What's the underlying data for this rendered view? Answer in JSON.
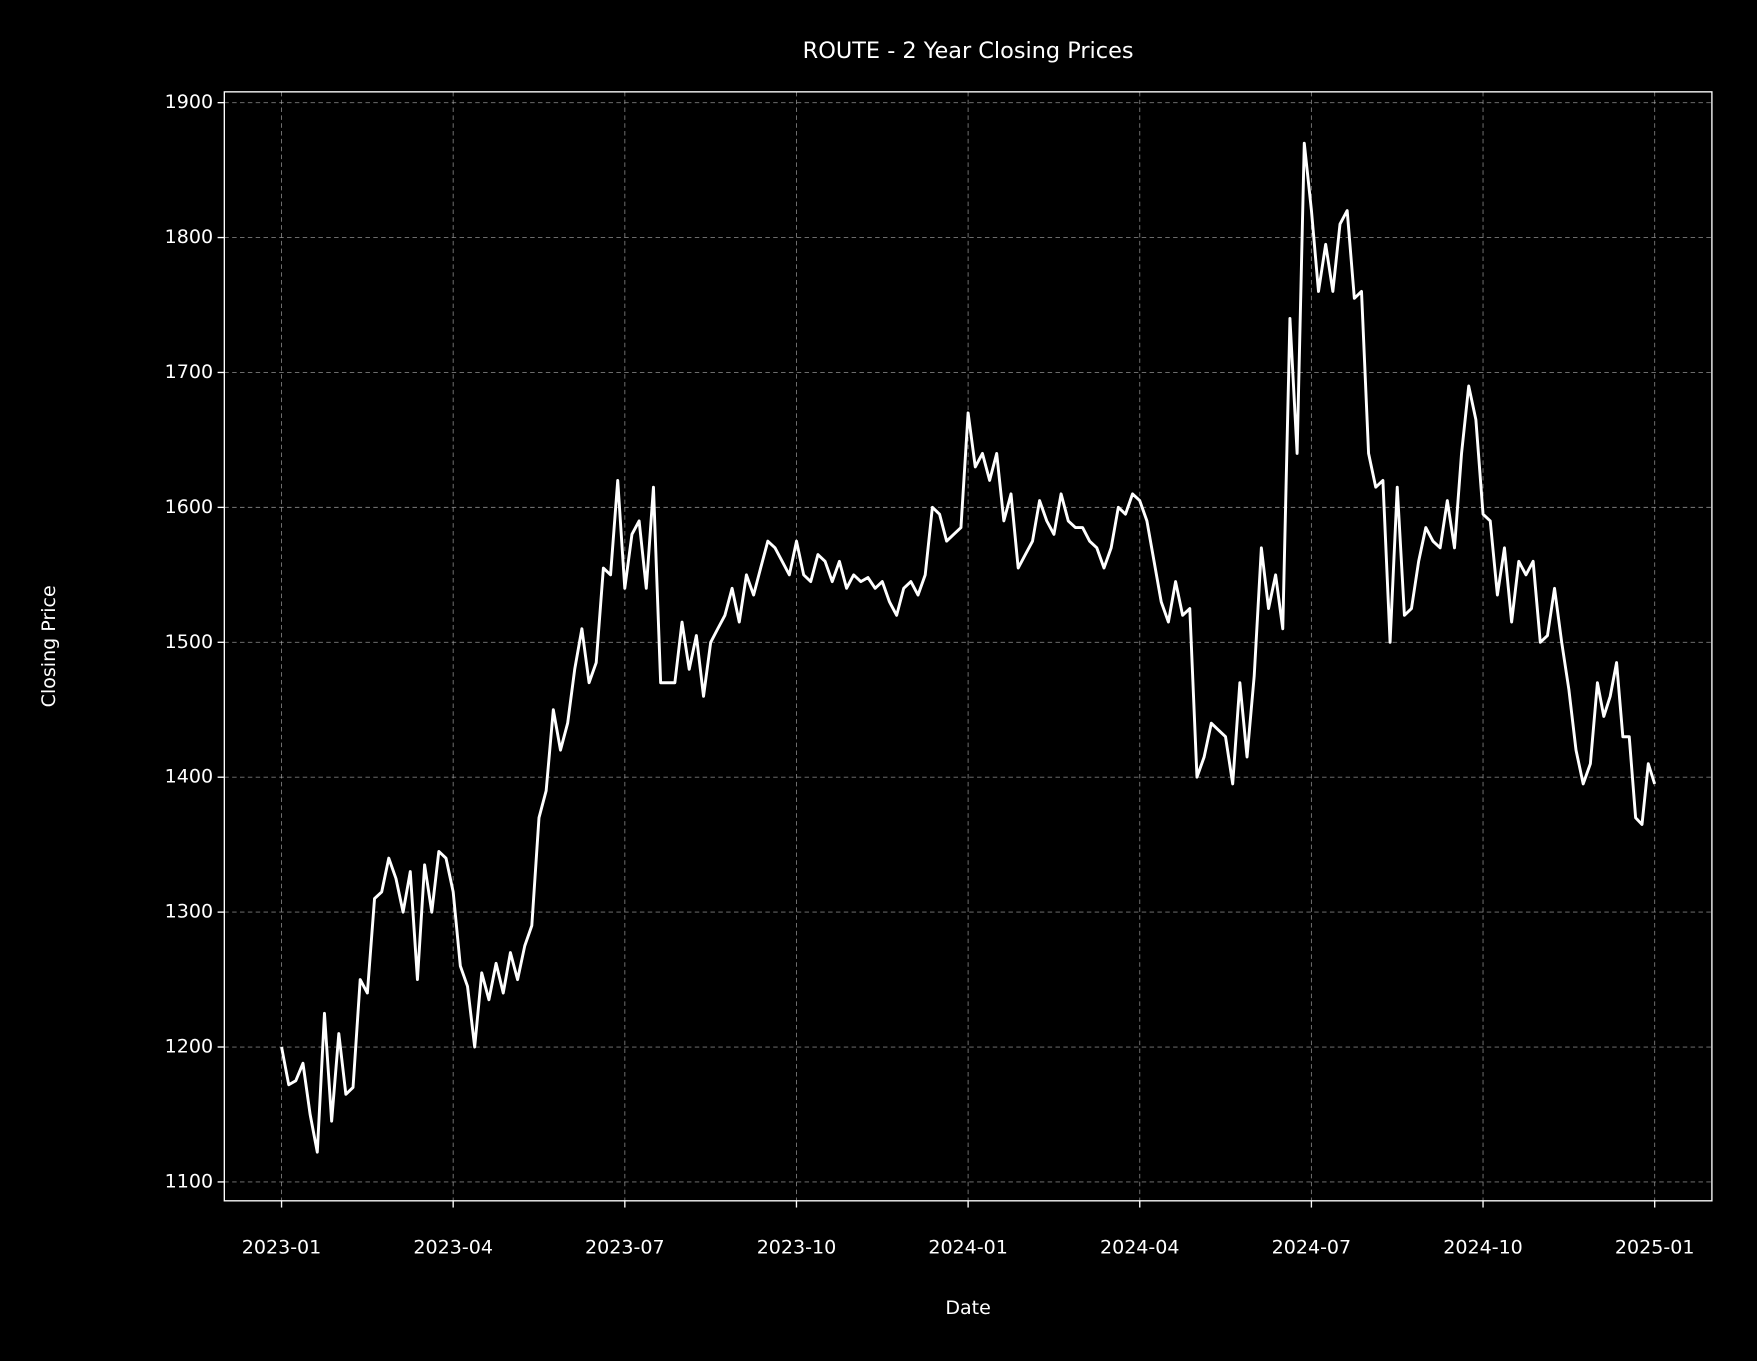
{
  "chart_data": {
    "type": "line",
    "title": "ROUTE - 2 Year Closing Prices",
    "x_label": "Date",
    "y_label": "Closing Price",
    "color": "#ffffff",
    "grid": true,
    "xlim": [
      "2022-12",
      "2025-02"
    ],
    "xticks": [
      "2023-01",
      "2023-04",
      "2023-07",
      "2023-10",
      "2024-01",
      "2024-04",
      "2024-07",
      "2024-10",
      "2025-01"
    ],
    "ylim": [
      1086,
      1908
    ],
    "yticks": [
      1100,
      1200,
      1300,
      1400,
      1500,
      1600,
      1700,
      1800,
      1900
    ],
    "x": [
      "2023-01",
      "2023-01",
      "2023-01",
      "2023-01",
      "2023-01",
      "2023-01",
      "2023-01",
      "2023-01",
      "2023-02",
      "2023-02",
      "2023-02",
      "2023-02",
      "2023-02",
      "2023-02",
      "2023-02",
      "2023-02",
      "2023-03",
      "2023-03",
      "2023-03",
      "2023-03",
      "2023-03",
      "2023-03",
      "2023-03",
      "2023-03",
      "2023-04",
      "2023-04",
      "2023-04",
      "2023-04",
      "2023-04",
      "2023-04",
      "2023-04",
      "2023-04",
      "2023-05",
      "2023-05",
      "2023-05",
      "2023-05",
      "2023-05",
      "2023-05",
      "2023-05",
      "2023-05",
      "2023-06",
      "2023-06",
      "2023-06",
      "2023-06",
      "2023-06",
      "2023-06",
      "2023-06",
      "2023-06",
      "2023-07",
      "2023-07",
      "2023-07",
      "2023-07",
      "2023-07",
      "2023-07",
      "2023-07",
      "2023-07",
      "2023-08",
      "2023-08",
      "2023-08",
      "2023-08",
      "2023-08",
      "2023-08",
      "2023-08",
      "2023-08",
      "2023-09",
      "2023-09",
      "2023-09",
      "2023-09",
      "2023-09",
      "2023-09",
      "2023-09",
      "2023-09",
      "2023-10",
      "2023-10",
      "2023-10",
      "2023-10",
      "2023-10",
      "2023-10",
      "2023-10",
      "2023-10",
      "2023-11",
      "2023-11",
      "2023-11",
      "2023-11",
      "2023-11",
      "2023-11",
      "2023-11",
      "2023-11",
      "2023-12",
      "2023-12",
      "2023-12",
      "2023-12",
      "2023-12",
      "2023-12",
      "2023-12",
      "2023-12",
      "2024-01",
      "2024-01",
      "2024-01",
      "2024-01",
      "2024-01",
      "2024-01",
      "2024-01",
      "2024-01",
      "2024-02",
      "2024-02",
      "2024-02",
      "2024-02",
      "2024-02",
      "2024-02",
      "2024-02",
      "2024-02",
      "2024-03",
      "2024-03",
      "2024-03",
      "2024-03",
      "2024-03",
      "2024-03",
      "2024-03",
      "2024-03",
      "2024-04",
      "2024-04",
      "2024-04",
      "2024-04",
      "2024-04",
      "2024-04",
      "2024-04",
      "2024-04",
      "2024-05",
      "2024-05",
      "2024-05",
      "2024-05",
      "2024-05",
      "2024-05",
      "2024-05",
      "2024-05",
      "2024-06",
      "2024-06",
      "2024-06",
      "2024-06",
      "2024-06",
      "2024-06",
      "2024-06",
      "2024-06",
      "2024-07",
      "2024-07",
      "2024-07",
      "2024-07",
      "2024-07",
      "2024-07",
      "2024-07",
      "2024-07",
      "2024-08",
      "2024-08",
      "2024-08",
      "2024-08",
      "2024-08",
      "2024-08",
      "2024-08",
      "2024-08",
      "2024-09",
      "2024-09",
      "2024-09",
      "2024-09",
      "2024-09",
      "2024-09",
      "2024-09",
      "2024-09",
      "2024-10",
      "2024-10",
      "2024-10",
      "2024-10",
      "2024-10",
      "2024-10",
      "2024-10",
      "2024-10",
      "2024-11",
      "2024-11",
      "2024-11",
      "2024-11",
      "2024-11",
      "2024-11",
      "2024-11",
      "2024-11",
      "2024-12",
      "2024-12",
      "2024-12",
      "2024-12",
      "2024-12",
      "2024-12",
      "2024-12",
      "2024-12",
      "2024-12",
      "2025-01"
    ],
    "values": [
      1200,
      1172,
      1175,
      1188,
      1150,
      1122,
      1225,
      1145,
      1210,
      1165,
      1170,
      1250,
      1240,
      1310,
      1315,
      1340,
      1325,
      1300,
      1330,
      1250,
      1335,
      1300,
      1345,
      1340,
      1315,
      1260,
      1245,
      1200,
      1255,
      1235,
      1262,
      1240,
      1270,
      1250,
      1275,
      1290,
      1370,
      1390,
      1450,
      1420,
      1440,
      1480,
      1510,
      1470,
      1485,
      1555,
      1550,
      1620,
      1540,
      1580,
      1590,
      1540,
      1615,
      1470,
      1470,
      1470,
      1515,
      1480,
      1505,
      1460,
      1500,
      1510,
      1520,
      1540,
      1515,
      1550,
      1535,
      1555,
      1575,
      1570,
      1560,
      1550,
      1575,
      1550,
      1545,
      1565,
      1560,
      1545,
      1560,
      1540,
      1550,
      1545,
      1548,
      1540,
      1545,
      1530,
      1520,
      1540,
      1545,
      1535,
      1550,
      1600,
      1595,
      1575,
      1580,
      1585,
      1670,
      1630,
      1640,
      1620,
      1640,
      1590,
      1610,
      1555,
      1565,
      1575,
      1605,
      1590,
      1580,
      1610,
      1590,
      1585,
      1585,
      1575,
      1570,
      1555,
      1570,
      1600,
      1595,
      1610,
      1605,
      1590,
      1560,
      1530,
      1515,
      1545,
      1520,
      1525,
      1400,
      1415,
      1440,
      1435,
      1430,
      1395,
      1470,
      1415,
      1475,
      1570,
      1525,
      1550,
      1510,
      1740,
      1640,
      1870,
      1820,
      1760,
      1795,
      1760,
      1810,
      1820,
      1755,
      1760,
      1640,
      1615,
      1620,
      1500,
      1615,
      1520,
      1525,
      1560,
      1585,
      1575,
      1570,
      1605,
      1570,
      1640,
      1690,
      1665,
      1595,
      1590,
      1535,
      1570,
      1515,
      1560,
      1550,
      1560,
      1500,
      1505,
      1540,
      1500,
      1465,
      1420,
      1395,
      1410,
      1470,
      1445,
      1460,
      1485,
      1430,
      1430,
      1370,
      1365,
      1410,
      1395
    ]
  }
}
